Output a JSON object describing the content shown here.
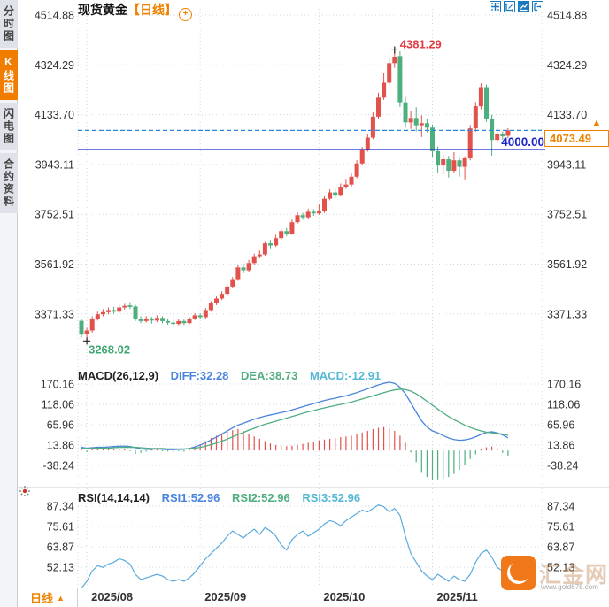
{
  "sidebar": {
    "tabs": [
      {
        "label": "分时图",
        "active": false
      },
      {
        "label": "K线图",
        "active": true
      },
      {
        "label": "闪电图",
        "active": false
      },
      {
        "label": "合约资料",
        "active": false
      }
    ]
  },
  "header": {
    "symbol": "现货黄金",
    "period_tag": "【日线】",
    "add_indicator_glyph": "+",
    "tools": [
      "crosshair",
      "axis-scale",
      "chart-style",
      "exit"
    ]
  },
  "colors": {
    "up": "#e2514c",
    "down": "#4daf7e",
    "accent_orange": "#f08200",
    "dash_blue": "#2b87e3",
    "price_line_blue": "#1c27c8",
    "diff_blue": "#4a84dd",
    "dea_green": "#4fae7f",
    "macd_cyan": "#54b8d4",
    "rsi_blue": "#5aabdc",
    "grid": "#ccd8e4",
    "axis_text": "#333333",
    "high_red": "#e23b41",
    "low_green": "#3fa871"
  },
  "footer": {
    "period_label": "日线",
    "period_arrow": "▲"
  },
  "watermark": {
    "brand": "汇金网",
    "url": "www.gold678.com"
  },
  "chart_data": [
    {
      "type": "candlestick",
      "title": "现货黄金 日线",
      "ylabel": "price",
      "ylim": [
        3198,
        4572
      ],
      "grid": true,
      "y_ticks": [
        4514.88,
        4324.29,
        4133.7,
        3943.11,
        3752.51,
        3561.92,
        3371.33
      ],
      "x_labels": [
        {
          "text": "2025/08",
          "index": 1
        },
        {
          "text": "2025/09",
          "index": 22
        },
        {
          "text": "2025/10",
          "index": 44
        },
        {
          "text": "2025/11",
          "index": 65
        }
      ],
      "high_annotation": {
        "label": "4381.29",
        "value": 4381.29,
        "index": 58
      },
      "low_annotation": {
        "label": "3268.02",
        "value": 3268.02,
        "index": 1
      },
      "price_line": {
        "value": 4000.0,
        "label": "4000.00"
      },
      "last_price": {
        "value": 4073.49,
        "label": "4073.49"
      },
      "ohlc": [
        [
          3345,
          3352,
          3282,
          3292
        ],
        [
          3294,
          3318,
          3268.02,
          3308
        ],
        [
          3308,
          3362,
          3300,
          3352
        ],
        [
          3352,
          3380,
          3346,
          3370
        ],
        [
          3370,
          3390,
          3362,
          3378
        ],
        [
          3378,
          3396,
          3370,
          3386
        ],
        [
          3386,
          3398,
          3372,
          3380
        ],
        [
          3380,
          3406,
          3375,
          3396
        ],
        [
          3396,
          3410,
          3388,
          3402
        ],
        [
          3404,
          3416,
          3390,
          3398
        ],
        [
          3400,
          3406,
          3344,
          3352
        ],
        [
          3352,
          3362,
          3336,
          3344
        ],
        [
          3344,
          3363,
          3338,
          3354
        ],
        [
          3354,
          3360,
          3334,
          3346
        ],
        [
          3346,
          3366,
          3340,
          3356
        ],
        [
          3356,
          3362,
          3336,
          3344
        ],
        [
          3344,
          3354,
          3330,
          3338
        ],
        [
          3338,
          3350,
          3325,
          3333
        ],
        [
          3333,
          3352,
          3328,
          3344
        ],
        [
          3344,
          3350,
          3329,
          3336
        ],
        [
          3336,
          3360,
          3332,
          3354
        ],
        [
          3354,
          3374,
          3348,
          3366
        ],
        [
          3366,
          3374,
          3351,
          3359
        ],
        [
          3359,
          3394,
          3354,
          3386
        ],
        [
          3386,
          3420,
          3380,
          3412
        ],
        [
          3412,
          3438,
          3405,
          3430
        ],
        [
          3430,
          3458,
          3424,
          3448
        ],
        [
          3448,
          3484,
          3442,
          3476
        ],
        [
          3476,
          3512,
          3470,
          3504
        ],
        [
          3504,
          3560,
          3498,
          3549
        ],
        [
          3549,
          3562,
          3528,
          3538
        ],
        [
          3538,
          3578,
          3533,
          3566
        ],
        [
          3566,
          3602,
          3560,
          3592
        ],
        [
          3592,
          3614,
          3584,
          3599
        ],
        [
          3599,
          3650,
          3594,
          3641
        ],
        [
          3641,
          3654,
          3622,
          3633
        ],
        [
          3633,
          3674,
          3628,
          3661
        ],
        [
          3661,
          3697,
          3655,
          3688
        ],
        [
          3688,
          3700,
          3668,
          3678
        ],
        [
          3678,
          3732,
          3674,
          3722
        ],
        [
          3722,
          3760,
          3716,
          3749
        ],
        [
          3749,
          3758,
          3732,
          3741
        ],
        [
          3741,
          3774,
          3736,
          3762
        ],
        [
          3762,
          3772,
          3746,
          3756
        ],
        [
          3756,
          3790,
          3750,
          3764
        ],
        [
          3764,
          3822,
          3758,
          3812
        ],
        [
          3812,
          3848,
          3806,
          3836
        ],
        [
          3836,
          3850,
          3816,
          3827
        ],
        [
          3827,
          3870,
          3821,
          3858
        ],
        [
          3858,
          3888,
          3850,
          3866
        ],
        [
          3866,
          3908,
          3858,
          3896
        ],
        [
          3896,
          3960,
          3890,
          3947
        ],
        [
          3947,
          4010,
          3940,
          3999
        ],
        [
          3999,
          4060,
          3992,
          4046
        ],
        [
          4046,
          4142,
          4040,
          4126
        ],
        [
          4126,
          4218,
          4118,
          4199
        ],
        [
          4199,
          4292,
          4190,
          4256
        ],
        [
          4256,
          4352,
          4244,
          4331
        ],
        [
          4331,
          4381.29,
          4313,
          4356
        ],
        [
          4358,
          4376,
          4163,
          4181
        ],
        [
          4181,
          4202,
          4083,
          4104
        ],
        [
          4104,
          4147,
          4079,
          4121
        ],
        [
          4121,
          4162,
          4070,
          4093
        ],
        [
          4093,
          4131,
          4048,
          4101
        ],
        [
          4101,
          4119,
          4066,
          4084
        ],
        [
          4084,
          4096,
          3972,
          3994
        ],
        [
          3994,
          4012,
          3913,
          3939
        ],
        [
          3939,
          3981,
          3906,
          3963
        ],
        [
          3963,
          3976,
          3893,
          3919
        ],
        [
          3919,
          3990,
          3911,
          3959
        ],
        [
          3959,
          3971,
          3896,
          3934
        ],
        [
          3934,
          3974,
          3886,
          3967
        ],
        [
          3967,
          4094,
          3959,
          4081
        ],
        [
          4081,
          4182,
          4069,
          4166
        ],
        [
          4166,
          4254,
          4154,
          4239
        ],
        [
          4239,
          4249,
          4106,
          4119
        ],
        [
          4119,
          4133,
          3977,
          4037
        ],
        [
          4037,
          4077,
          4024,
          4061
        ],
        [
          4061,
          4069,
          4038,
          4051
        ],
        [
          4053,
          4082,
          4044,
          4073.49
        ]
      ]
    },
    {
      "type": "line",
      "label": "MACD(26,12,9)",
      "legend": [
        {
          "text": "DIFF:32.28",
          "color": "#4a84dd"
        },
        {
          "text": "DEA:38.73",
          "color": "#4fae7f"
        },
        {
          "text": "MACD:-12.91",
          "color": "#54b8d4"
        }
      ],
      "y_ticks": [
        170.16,
        118.06,
        65.96,
        13.86,
        -38.24
      ],
      "diff": [
        8,
        6,
        7,
        8,
        8,
        9,
        10,
        11,
        11,
        10,
        7,
        4,
        3,
        3,
        4,
        3,
        2,
        2,
        3,
        3,
        5,
        9,
        14,
        20,
        27,
        34,
        42,
        50,
        58,
        65,
        70,
        75,
        80,
        84,
        88,
        91,
        94,
        97,
        100,
        104,
        108,
        112,
        116,
        120,
        124,
        128,
        131,
        134,
        137,
        140,
        144,
        148,
        153,
        158,
        163,
        168,
        172,
        175,
        172,
        162,
        145,
        122,
        98,
        76,
        60,
        50,
        45,
        38,
        32,
        28,
        26,
        27,
        30,
        35,
        41,
        46,
        48,
        45,
        40,
        32.28
      ],
      "dea": [
        5,
        5,
        5,
        6,
        6,
        6,
        7,
        8,
        8,
        8,
        8,
        7,
        6,
        5,
        5,
        5,
        4,
        4,
        4,
        4,
        5,
        6,
        8,
        11,
        15,
        19,
        24,
        29,
        35,
        41,
        46,
        52,
        57,
        62,
        67,
        71,
        75,
        79,
        83,
        87,
        91,
        95,
        99,
        102,
        106,
        109,
        112,
        115,
        118,
        121,
        124,
        128,
        132,
        136,
        140,
        144,
        148,
        152,
        155,
        157,
        156,
        152,
        145,
        136,
        126,
        116,
        106,
        96,
        87,
        79,
        72,
        65,
        59,
        54,
        50,
        47,
        45,
        44,
        42,
        38.73
      ],
      "hist": [
        3,
        -4,
        4,
        5,
        4,
        3,
        4,
        5,
        3,
        -2,
        -9,
        -6,
        -3,
        2,
        3,
        -2,
        -3,
        -4,
        -2,
        -3,
        3,
        8,
        16,
        24,
        32,
        38,
        44,
        48,
        52,
        55,
        50,
        42,
        36,
        30,
        24,
        18,
        14,
        12,
        11,
        12,
        14,
        17,
        20,
        23,
        26,
        28,
        30,
        32,
        34,
        36,
        38,
        42,
        46,
        50,
        55,
        58,
        60,
        57,
        50,
        38,
        20,
        -5,
        -30,
        -55,
        -68,
        -75,
        -74,
        -72,
        -68,
        -60,
        -50,
        -38,
        -22,
        -10,
        4,
        8,
        10,
        6,
        -6,
        -12.91
      ]
    },
    {
      "type": "line",
      "label": "RSI(14,14,14)",
      "legend": [
        {
          "text": "RSI1:52.96",
          "color": "#4a84dd"
        },
        {
          "text": "RSI2:52.96",
          "color": "#4fae7f"
        },
        {
          "text": "RSI3:52.96",
          "color": "#54b8d4"
        }
      ],
      "y_ticks": [
        87.34,
        75.61,
        63.87,
        52.13
      ],
      "values": [
        40,
        44,
        50,
        53,
        52,
        54,
        55,
        57,
        56,
        54,
        48,
        45,
        46,
        47,
        48,
        47,
        45,
        44,
        45,
        44,
        46,
        49,
        53,
        57,
        60,
        63,
        66,
        70,
        73,
        71,
        69,
        72,
        74,
        71,
        75,
        73,
        70,
        65,
        62,
        68,
        71,
        73,
        70,
        72,
        74,
        77,
        79,
        78,
        76,
        79,
        81,
        83,
        85,
        84,
        86,
        88,
        87,
        84,
        86,
        82,
        70,
        60,
        55,
        50,
        47,
        45,
        48,
        46,
        44,
        47,
        45,
        44,
        48,
        55,
        60,
        62,
        58,
        52,
        50,
        52.96
      ]
    }
  ]
}
